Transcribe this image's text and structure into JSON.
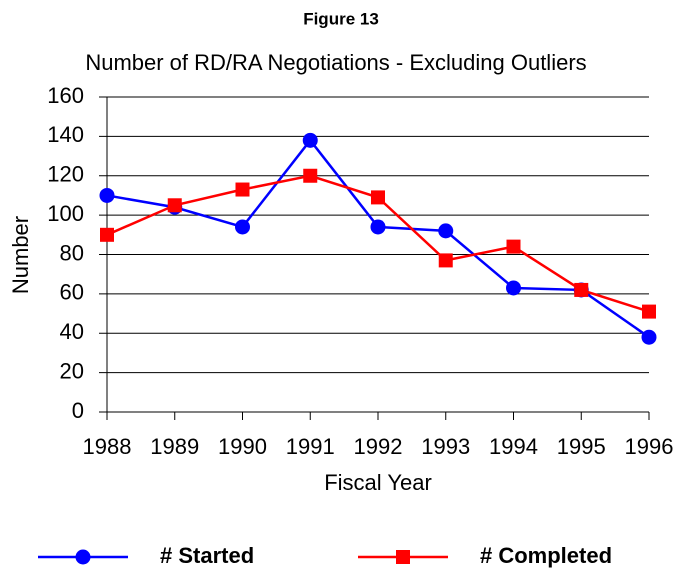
{
  "chart_data": {
    "type": "line",
    "title": "Figure 13",
    "subtitle": "Number of RD/RA Negotiations - Excluding Outliers",
    "x_label": "Fiscal Year",
    "y_label": "Number",
    "categories": [
      "1988",
      "1989",
      "1990",
      "1991",
      "1992",
      "1993",
      "1994",
      "1995",
      "1996"
    ],
    "series": [
      {
        "name": "# Started",
        "color": "#0000ff",
        "marker": "circle",
        "values": [
          110,
          104,
          94,
          138,
          94,
          92,
          63,
          62,
          38
        ]
      },
      {
        "name": "# Completed",
        "color": "#ff0000",
        "marker": "square",
        "values": [
          90,
          105,
          113,
          120,
          109,
          77,
          84,
          62,
          51
        ]
      }
    ],
    "ylim": [
      0,
      160
    ],
    "yticks": [
      0,
      20,
      40,
      60,
      80,
      100,
      120,
      140,
      160
    ],
    "grid": true,
    "legend": "bottom"
  }
}
